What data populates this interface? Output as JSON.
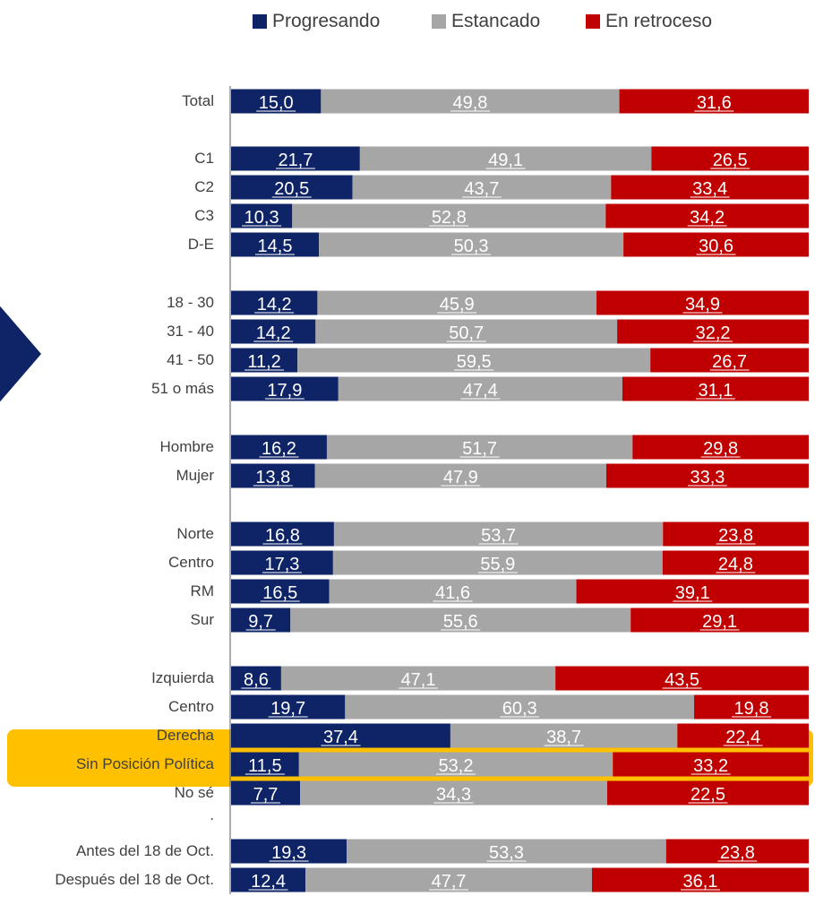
{
  "chart_data": {
    "type": "bar",
    "orientation": "horizontal",
    "stacked": true,
    "normalized": true,
    "legend": {
      "placement": "top",
      "items": [
        {
          "name": "Progresando",
          "color": "#0f2466"
        },
        {
          "name": "Estancado",
          "color": "#a6a6a6"
        },
        {
          "name": "En retroceso",
          "color": "#c00000"
        }
      ]
    },
    "rows": [
      {
        "label": "Total",
        "values": [
          15.0,
          49.8,
          31.6
        ],
        "texts": [
          "15,0",
          "49,8",
          "31,6"
        ]
      },
      {
        "label": "C1",
        "values": [
          21.7,
          49.1,
          26.5
        ],
        "texts": [
          "21,7",
          "49,1",
          "26,5"
        ]
      },
      {
        "label": "C2",
        "values": [
          20.5,
          43.7,
          33.4
        ],
        "texts": [
          "20,5",
          "43,7",
          "33,4"
        ]
      },
      {
        "label": "C3",
        "values": [
          10.3,
          52.8,
          34.2
        ],
        "texts": [
          "10,3",
          "52,8",
          "34,2"
        ]
      },
      {
        "label": "D-E",
        "values": [
          14.5,
          50.3,
          30.6
        ],
        "texts": [
          "14,5",
          "50,3",
          "30,6"
        ]
      },
      {
        "label": "18 - 30",
        "values": [
          14.2,
          45.9,
          34.9
        ],
        "texts": [
          "14,2",
          "45,9",
          "34,9"
        ]
      },
      {
        "label": "31 - 40",
        "values": [
          14.2,
          50.7,
          32.2
        ],
        "texts": [
          "14,2",
          "50,7",
          "32,2"
        ]
      },
      {
        "label": "41 - 50",
        "values": [
          11.2,
          59.5,
          26.7
        ],
        "texts": [
          "11,2",
          "59,5",
          "26,7"
        ]
      },
      {
        "label": "51 o más",
        "values": [
          17.9,
          47.4,
          31.1
        ],
        "texts": [
          "17,9",
          "47,4",
          "31,1"
        ]
      },
      {
        "label": "Hombre",
        "values": [
          16.2,
          51.7,
          29.8
        ],
        "texts": [
          "16,2",
          "51,7",
          "29,8"
        ]
      },
      {
        "label": "Mujer",
        "values": [
          13.8,
          47.9,
          33.3
        ],
        "texts": [
          "13,8",
          "47,9",
          "33,3"
        ]
      },
      {
        "label": "Norte",
        "values": [
          16.8,
          53.7,
          23.8
        ],
        "texts": [
          "16,8",
          "53,7",
          "23,8"
        ]
      },
      {
        "label": "Centro",
        "values": [
          17.3,
          55.9,
          24.8
        ],
        "texts": [
          "17,3",
          "55,9",
          "24,8"
        ]
      },
      {
        "label": "RM",
        "values": [
          16.5,
          41.6,
          39.1
        ],
        "texts": [
          "16,5",
          "41,6",
          "39,1"
        ]
      },
      {
        "label": "Sur",
        "values": [
          9.7,
          55.6,
          29.1
        ],
        "texts": [
          "9,7",
          "55,6",
          "29,1"
        ]
      },
      {
        "label": "Izquierda",
        "values": [
          8.6,
          47.1,
          43.5
        ],
        "texts": [
          "8,6",
          "47,1",
          "43,5"
        ]
      },
      {
        "label": "Centro",
        "values": [
          19.7,
          60.3,
          19.8
        ],
        "texts": [
          "19,7",
          "60,3",
          "19,8"
        ]
      },
      {
        "label": "Derecha",
        "values": [
          37.4,
          38.7,
          22.4
        ],
        "texts": [
          "37,4",
          "38,7",
          "22,4"
        ]
      },
      {
        "label": "Sin Posición Política",
        "values": [
          11.5,
          53.2,
          33.2
        ],
        "texts": [
          "11,5",
          "53,2",
          "33,2"
        ]
      },
      {
        "label": "No sé",
        "values": [
          7.7,
          34.3,
          22.5
        ],
        "texts": [
          "7,7",
          "34,3",
          "22,5"
        ]
      },
      {
        "label": "Antes del 18 de Oct.",
        "values": [
          19.3,
          53.3,
          23.8
        ],
        "texts": [
          "19,3",
          "53,3",
          "23,8"
        ],
        "highlighted": true
      },
      {
        "label": "Después del 18 de Oct.",
        "values": [
          12.4,
          47.7,
          36.1
        ],
        "texts": [
          "12,4",
          "47,7",
          "36,1"
        ],
        "highlighted": true
      }
    ],
    "gap_marker": ".",
    "highlight_color": "#ffc000"
  },
  "decoration": {
    "arrow_color": "#0f2466"
  }
}
